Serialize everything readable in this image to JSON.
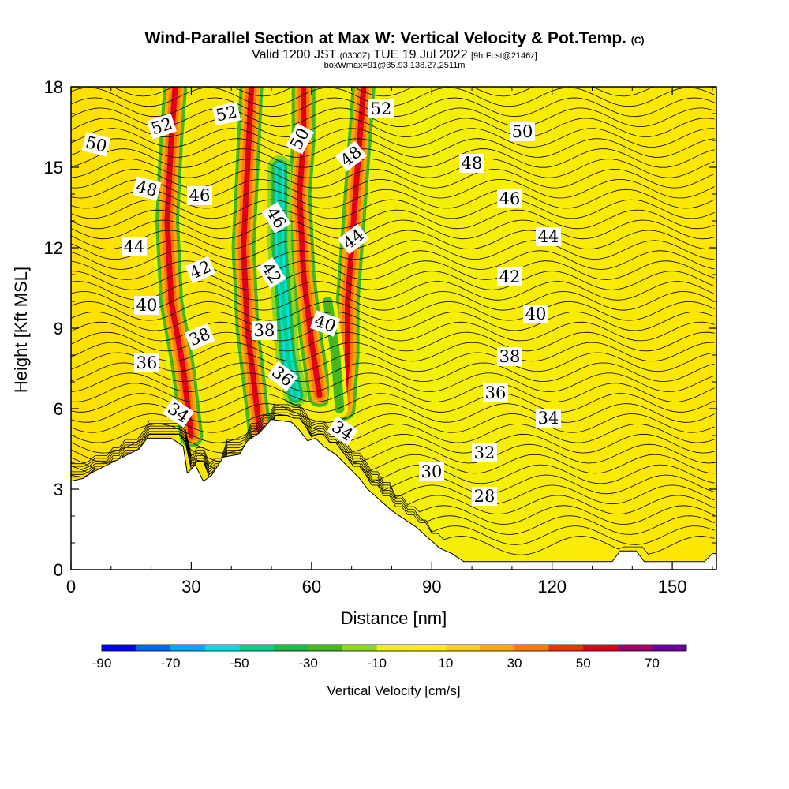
{
  "header": {
    "title": "Wind-Parallel Section at Max W: Vertical Velocity & Pot.Temp.",
    "title_mark": "(C)",
    "valid_prefix": "Valid 1200 JST",
    "valid_utc": "(0300Z)",
    "valid_date": "TUE 19 Jul 2022",
    "forecast_info": "[9hrFcst@2146z]",
    "box_info": "boxWmax=91@35.93,138.27,2511m"
  },
  "chart_data": {
    "type": "heatmap",
    "xlabel": "Distance [nm]",
    "ylabel": "Height [Kft MSL]",
    "xlim": [
      0,
      161
    ],
    "ylim": [
      0,
      18
    ],
    "xticks": [
      0,
      30,
      60,
      90,
      120,
      150
    ],
    "yticks": [
      0,
      3,
      6,
      9,
      12,
      15,
      18
    ],
    "colorbar": {
      "title": "Vertical Velocity [cm/s]",
      "tick_labels": [
        "-90",
        "-70",
        "-50",
        "-30",
        "-10",
        "10",
        "30",
        "50",
        "70"
      ],
      "bounds": [
        -90,
        -80,
        -70,
        -60,
        -50,
        -40,
        -30,
        -20,
        -10,
        0,
        10,
        20,
        30,
        40,
        50,
        60,
        70,
        80
      ],
      "colors": [
        "#0000ff",
        "#0066ff",
        "#00aaff",
        "#00e0e0",
        "#00d08a",
        "#1fb84a",
        "#44b81e",
        "#90d820",
        "#f0f008",
        "#ffee00",
        "#ffd200",
        "#ffaa00",
        "#ff7a00",
        "#f03000",
        "#e00018",
        "#a0006a",
        "#6a0096"
      ]
    },
    "terrain_kft": [
      [
        0,
        3.3
      ],
      [
        3,
        3.4
      ],
      [
        5,
        3.6
      ],
      [
        9,
        3.9
      ],
      [
        13,
        4.2
      ],
      [
        17,
        4.5
      ],
      [
        19,
        4.9
      ],
      [
        25,
        4.9
      ],
      [
        28,
        4.6
      ],
      [
        29,
        3.6
      ],
      [
        31,
        3.9
      ],
      [
        33,
        3.3
      ],
      [
        35,
        3.5
      ],
      [
        38,
        4.2
      ],
      [
        42,
        4.3
      ],
      [
        44,
        4.8
      ],
      [
        47,
        5.1
      ],
      [
        50,
        5.6
      ],
      [
        55,
        5.5
      ],
      [
        57,
        5.2
      ],
      [
        59,
        4.8
      ],
      [
        61,
        4.9
      ],
      [
        63,
        4.6
      ],
      [
        66,
        4.3
      ],
      [
        68,
        4.0
      ],
      [
        70,
        3.7
      ],
      [
        72,
        3.4
      ],
      [
        74,
        3.0
      ],
      [
        77,
        2.6
      ],
      [
        80,
        2.2
      ],
      [
        83,
        1.9
      ],
      [
        86,
        1.6
      ],
      [
        89,
        1.2
      ],
      [
        92,
        0.8
      ],
      [
        95,
        0.6
      ],
      [
        98,
        0.3
      ],
      [
        135,
        0.3
      ],
      [
        137,
        0.7
      ],
      [
        141,
        0.7
      ],
      [
        143,
        0.3
      ],
      [
        158,
        0.3
      ],
      [
        160,
        0.6
      ]
    ],
    "series": [
      {
        "name": "+50",
        "values": [
          [
            26,
            18
          ],
          [
            25,
            16
          ],
          [
            24,
            13
          ],
          [
            25,
            10
          ],
          [
            28,
            7.5
          ],
          [
            30,
            5
          ]
        ]
      },
      {
        "name": "+50",
        "values": [
          [
            45,
            18
          ],
          [
            44,
            15
          ],
          [
            43,
            12
          ],
          [
            44,
            9
          ],
          [
            46,
            6.5
          ],
          [
            47,
            5.2
          ]
        ]
      },
      {
        "name": "+50",
        "values": [
          [
            58,
            18
          ],
          [
            58,
            16
          ],
          [
            57,
            14
          ],
          [
            58,
            11
          ],
          [
            60,
            8.5
          ],
          [
            62,
            6.5
          ]
        ]
      },
      {
        "name": "+50",
        "values": [
          [
            73,
            18
          ],
          [
            72,
            16
          ],
          [
            71,
            14
          ],
          [
            70,
            12
          ],
          [
            69,
            10
          ],
          [
            69,
            8
          ],
          [
            68,
            6
          ]
        ]
      },
      {
        "name": "-50",
        "values": [
          [
            52,
            15
          ],
          [
            52,
            12
          ],
          [
            53,
            10
          ],
          [
            54,
            8
          ],
          [
            56,
            6.5
          ]
        ]
      },
      {
        "name": "-30",
        "values": [
          [
            64,
            10
          ],
          [
            66,
            8
          ],
          [
            67,
            6
          ]
        ]
      }
    ],
    "contour_labels": [
      "52",
      "52",
      "52",
      "50",
      "50",
      "50",
      "48",
      "48",
      "48",
      "46",
      "46",
      "46",
      "44",
      "44",
      "44",
      "42",
      "42",
      "42",
      "40",
      "40",
      "40",
      "38",
      "38",
      "38",
      "36",
      "36",
      "36",
      "34",
      "34",
      "34",
      "32",
      "30",
      "28"
    ]
  }
}
